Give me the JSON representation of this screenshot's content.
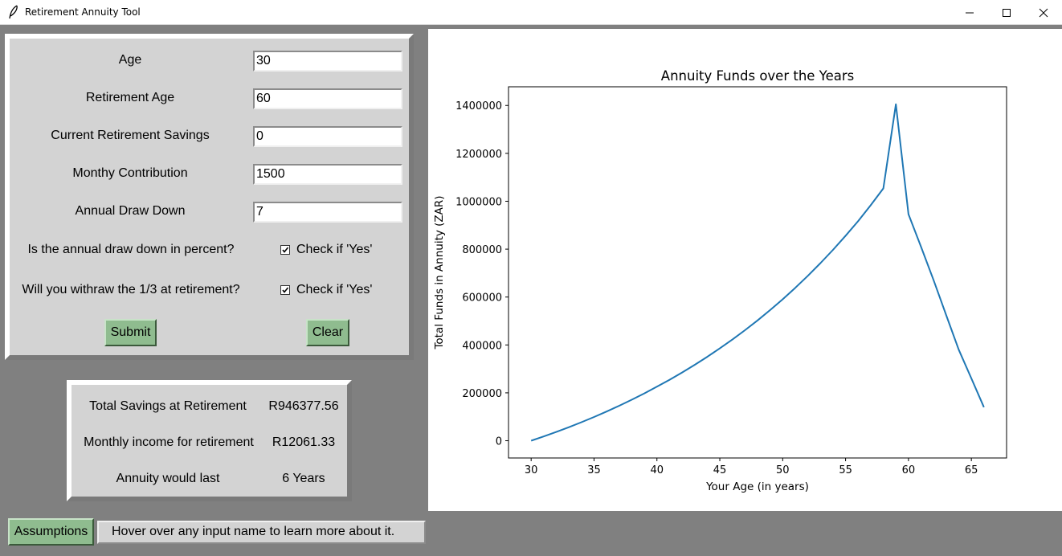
{
  "window": {
    "title": "Retirement Annuity Tool",
    "app_icon": "feather-icon",
    "controls": [
      "minimize-icon",
      "maximize-icon",
      "close-icon"
    ]
  },
  "inputs": {
    "age": {
      "label": "Age",
      "value": "30"
    },
    "retirement_age": {
      "label": "Retirement Age",
      "value": "60"
    },
    "current_savings": {
      "label": "Current Retirement Savings",
      "value": "0"
    },
    "monthly_contribution": {
      "label": "Monthy Contribution",
      "value": "1500"
    },
    "annual_draw_down": {
      "label": "Annual Draw Down",
      "value": "7"
    },
    "draw_down_percent": {
      "question": "Is the annual draw down in percent?",
      "check_label": "Check if 'Yes'",
      "checked": true
    },
    "withdraw_third": {
      "question": "Will you withraw the 1/3 at retirement?",
      "check_label": "Check if 'Yes'",
      "checked": true
    }
  },
  "buttons": {
    "submit": "Submit",
    "clear": "Clear",
    "assumptions": "Assumptions"
  },
  "results": {
    "total_savings": {
      "label": "Total Savings at Retirement",
      "value": "R946377.56"
    },
    "monthly_income": {
      "label": "Monthly income for retirement",
      "value": "R12061.33"
    },
    "annuity_lasts": {
      "label": "Annuity would last",
      "value": "6 Years"
    }
  },
  "status_text": "Hover over any input name to learn more about it.",
  "colors": {
    "background": "#808080",
    "panel": "#d3d3d3",
    "button": "#8fbc8f",
    "line": "#1f77b4"
  },
  "chart_data": {
    "type": "line",
    "title": "Annuity Funds over the Years",
    "xlabel": "Your Age (in years)",
    "ylabel": "Total Funds in Annuity (ZAR)",
    "xlim": [
      28.2,
      67.8
    ],
    "ylim": [
      -72000,
      1478000
    ],
    "xticks": [
      30,
      35,
      40,
      45,
      50,
      55,
      60,
      65
    ],
    "yticks": [
      0,
      200000,
      400000,
      600000,
      800000,
      1000000,
      1200000,
      1400000
    ],
    "grid": false,
    "series": [
      {
        "color": "#1f77b4",
        "x": [
          30,
          31,
          32,
          33,
          34,
          35,
          36,
          37,
          38,
          39,
          40,
          41,
          42,
          43,
          44,
          45,
          46,
          47,
          48,
          49,
          50,
          51,
          52,
          53,
          54,
          55,
          56,
          57,
          58,
          59,
          60,
          61,
          62,
          63,
          64,
          65,
          66
        ],
        "y": [
          0,
          18000,
          36800,
          56500,
          77300,
          99100,
          122000,
          146000,
          171300,
          197800,
          225500,
          254500,
          285000,
          317000,
          350500,
          385500,
          422500,
          461500,
          502500,
          545500,
          590500,
          638500,
          688500,
          741500,
          797000,
          856000,
          917500,
          983500,
          1053500,
          1405000,
          946000,
          810000,
          670000,
          525000,
          380000,
          260000,
          140000
        ]
      }
    ]
  }
}
